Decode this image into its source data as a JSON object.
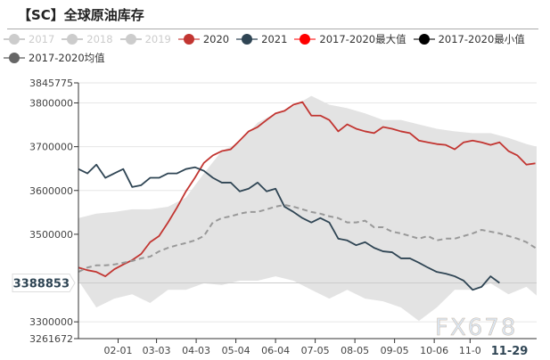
{
  "title": "【SC】全球原油库存",
  "legend": [
    {
      "label": "2017",
      "color": "#cccccc",
      "line": "#cccccc",
      "inactive": true
    },
    {
      "label": "2018",
      "color": "#cccccc",
      "line": "#cccccc",
      "inactive": true
    },
    {
      "label": "2019",
      "color": "#cccccc",
      "line": "#cccccc",
      "inactive": true
    },
    {
      "label": "2020",
      "color": "#c23531",
      "line": "#e08a88",
      "inactive": false
    },
    {
      "label": "2021",
      "color": "#2f4554",
      "line": "#7d8a94",
      "inactive": false
    },
    {
      "label": "2017-2020最大值",
      "color": "#ff0000",
      "line": "#ff7a7a",
      "inactive": false
    },
    {
      "label": "2017-2020最小值",
      "color": "#000000",
      "line": "#777777",
      "inactive": false
    },
    {
      "label": "2017-2020均值",
      "color": "#666666",
      "line": "#999999",
      "inactive": false
    }
  ],
  "watermark": "FX678",
  "chart_data": {
    "type": "line",
    "x_unit": "day of year",
    "x_step_days": 7,
    "band_step_days": 14,
    "xlim": [
      0,
      358
    ],
    "ylim": [
      3261672,
      3845775
    ],
    "yticks": [
      3845775,
      3800000,
      3700000,
      3600000,
      3500000,
      3300000,
      3261672
    ],
    "xticks": [
      {
        "label": "02-01",
        "day": 31
      },
      {
        "label": "03-03",
        "day": 61
      },
      {
        "label": "04-03",
        "day": 92
      },
      {
        "label": "05-04",
        "day": 123
      },
      {
        "label": "06-04",
        "day": 154
      },
      {
        "label": "07-05",
        "day": 185
      },
      {
        "label": "08-05",
        "day": 216
      },
      {
        "label": "09-05",
        "day": 247
      },
      {
        "label": "10-06",
        "day": 278
      },
      {
        "label": "11-0",
        "day": 306
      }
    ],
    "cursor": {
      "x_label": "11-29",
      "day": 334,
      "y_label": "3388853",
      "value": 3388853
    },
    "series": [
      {
        "name": "2020",
        "color": "#c23531",
        "values": [
          3424000,
          3418000,
          3414000,
          3404000,
          3420000,
          3431000,
          3441000,
          3455000,
          3482000,
          3496000,
          3527000,
          3561000,
          3598000,
          3629000,
          3663000,
          3680000,
          3690000,
          3694000,
          3714000,
          3735000,
          3745000,
          3761000,
          3776000,
          3782000,
          3796000,
          3802000,
          3771000,
          3771000,
          3761000,
          3735000,
          3751000,
          3741000,
          3735000,
          3731000,
          3745000,
          3741000,
          3735000,
          3731000,
          3714000,
          3710000,
          3706000,
          3704000,
          3694000,
          3710000,
          3714000,
          3710000,
          3704000,
          3710000,
          3690000,
          3680000,
          3659000,
          3662000
        ]
      },
      {
        "name": "2021",
        "color": "#2f4554",
        "values": [
          3649000,
          3639000,
          3659000,
          3629000,
          3639000,
          3649000,
          3608000,
          3612000,
          3629000,
          3629000,
          3639000,
          3639000,
          3649000,
          3653000,
          3645000,
          3629000,
          3618000,
          3618000,
          3598000,
          3604000,
          3618000,
          3598000,
          3604000,
          3563000,
          3551000,
          3537000,
          3527000,
          3537000,
          3527000,
          3490000,
          3486000,
          3475000,
          3482000,
          3469000,
          3461000,
          3459000,
          3445000,
          3445000,
          3435000,
          3424000,
          3414000,
          3410000,
          3404000,
          3394000,
          3373000,
          3380000,
          3404000,
          3388853
        ]
      },
      {
        "name": "2017-2020均值",
        "color": "#999999",
        "dashed": true,
        "values": [
          3414000,
          3424000,
          3429000,
          3429000,
          3431000,
          3435000,
          3439000,
          3445000,
          3449000,
          3461000,
          3469000,
          3475000,
          3480000,
          3486000,
          3496000,
          3527000,
          3537000,
          3541000,
          3547000,
          3551000,
          3551000,
          3557000,
          3563000,
          3567000,
          3563000,
          3557000,
          3551000,
          3547000,
          3541000,
          3537000,
          3527000,
          3527000,
          3531000,
          3516000,
          3516000,
          3506000,
          3502000,
          3496000,
          3490000,
          3496000,
          3486000,
          3490000,
          3490000,
          3496000,
          3502000,
          3510000,
          3506000,
          3502000,
          3496000,
          3490000,
          3482000,
          3469000
        ]
      }
    ],
    "band": {
      "name": "2017-2020 range",
      "color": "#e3e3e3",
      "max": [
        3537000,
        3547000,
        3551000,
        3557000,
        3557000,
        3563000,
        3584000,
        3639000,
        3690000,
        3710000,
        3755000,
        3776000,
        3792000,
        3816000,
        3796000,
        3788000,
        3776000,
        3761000,
        3761000,
        3751000,
        3741000,
        3735000,
        3731000,
        3731000,
        3720000,
        3706000,
        3700000
      ],
      "min": [
        3394000,
        3333000,
        3353000,
        3363000,
        3343000,
        3373000,
        3373000,
        3388000,
        3384000,
        3394000,
        3394000,
        3404000,
        3394000,
        3373000,
        3353000,
        3373000,
        3353000,
        3347000,
        3333000,
        3302000,
        3333000,
        3373000,
        3373000,
        3388000,
        3363000,
        3380000,
        3360000
      ]
    }
  }
}
